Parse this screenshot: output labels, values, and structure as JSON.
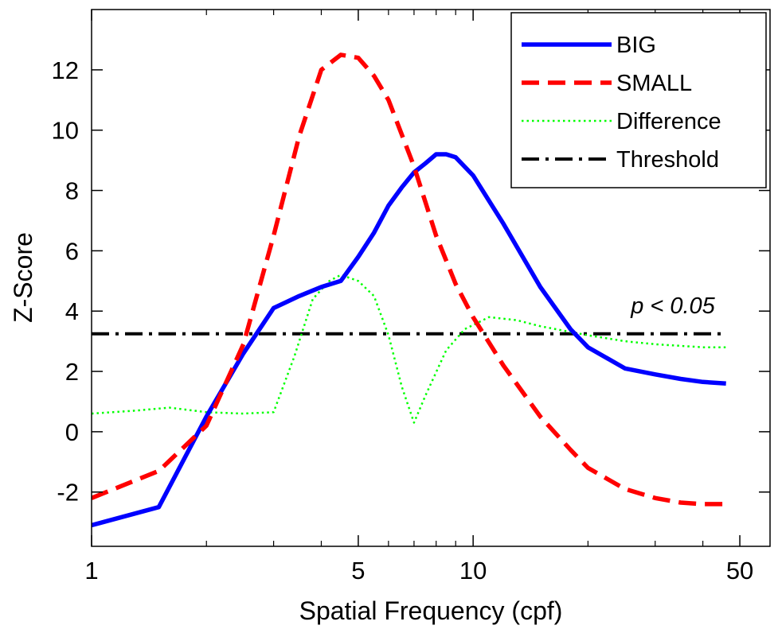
{
  "chart_data": {
    "type": "line",
    "title": "",
    "xlabel": "Spatial Frequency (cpf)",
    "ylabel": "Z-Score",
    "x_scale": "log",
    "xlim": [
      1,
      60
    ],
    "ylim": [
      -3.8,
      14
    ],
    "x_ticks": [
      1,
      5,
      10,
      50
    ],
    "x_tick_labels": [
      "1",
      "5",
      "10",
      "50"
    ],
    "x_minor_ticks": [
      2,
      3,
      4,
      6,
      7,
      8,
      9,
      20,
      30,
      40
    ],
    "y_ticks": [
      -2,
      0,
      2,
      4,
      6,
      8,
      10,
      12
    ],
    "y_tick_labels": [
      "-2",
      "0",
      "2",
      "4",
      "6",
      "8",
      "10",
      "12"
    ],
    "grid": false,
    "legend_position": "top-right",
    "annotation": "p < 0.05",
    "series": [
      {
        "name": "BIG",
        "color": "#0000ff",
        "style": "solid",
        "x": [
          1.0,
          1.5,
          2.0,
          2.5,
          3.0,
          3.5,
          4.0,
          4.5,
          5.0,
          5.5,
          6.0,
          6.5,
          7.0,
          7.5,
          8.0,
          8.5,
          9.0,
          10,
          12,
          15,
          18,
          20,
          25,
          30,
          35,
          40,
          46
        ],
        "y": [
          -3.1,
          -2.5,
          0.5,
          2.6,
          4.1,
          4.5,
          4.8,
          5.0,
          5.8,
          6.6,
          7.5,
          8.1,
          8.6,
          8.9,
          9.2,
          9.2,
          9.1,
          8.5,
          6.9,
          4.8,
          3.4,
          2.8,
          2.1,
          1.9,
          1.75,
          1.65,
          1.6
        ]
      },
      {
        "name": "SMALL",
        "color": "#ff0000",
        "style": "dashed",
        "x": [
          1.0,
          1.5,
          2.0,
          2.5,
          3.0,
          3.5,
          4.0,
          4.5,
          5.0,
          5.5,
          6.0,
          7.0,
          8.0,
          9.0,
          10,
          12,
          15,
          18,
          20,
          25,
          30,
          35,
          40,
          46
        ],
        "y": [
          -2.2,
          -1.3,
          0.2,
          2.9,
          6.5,
          9.8,
          12.0,
          12.5,
          12.4,
          11.8,
          11.0,
          8.8,
          6.5,
          4.9,
          3.8,
          2.2,
          0.5,
          -0.6,
          -1.2,
          -1.9,
          -2.2,
          -2.35,
          -2.4,
          -2.4
        ]
      },
      {
        "name": "Difference",
        "color": "#00ff00",
        "style": "dotted",
        "x": [
          1.0,
          1.3,
          1.6,
          2.0,
          2.5,
          3.0,
          3.4,
          3.8,
          4.2,
          4.5,
          5.0,
          5.5,
          6.0,
          6.5,
          7.0,
          7.5,
          8.5,
          9.5,
          11,
          13,
          15,
          20,
          25,
          30,
          40,
          46
        ],
        "y": [
          0.6,
          0.7,
          0.8,
          0.65,
          0.6,
          0.65,
          2.5,
          4.4,
          5.0,
          5.2,
          5.0,
          4.5,
          3.2,
          1.5,
          0.3,
          1.2,
          2.7,
          3.4,
          3.8,
          3.7,
          3.5,
          3.2,
          3.0,
          2.9,
          2.8,
          2.8
        ]
      },
      {
        "name": "Threshold",
        "color": "#000000",
        "style": "dashdot",
        "x": [
          1.0,
          46
        ],
        "y": [
          3.25,
          3.25
        ]
      }
    ]
  }
}
